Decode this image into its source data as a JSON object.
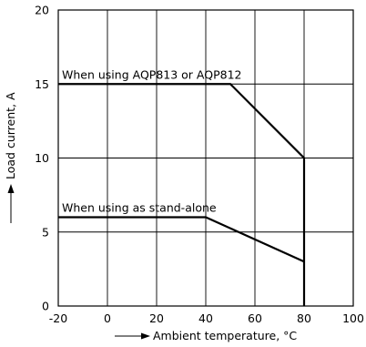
{
  "chart_data": {
    "type": "line",
    "xlabel": "Ambient temperature, °C",
    "ylabel": "Load current, A",
    "xlim": [
      -20,
      100
    ],
    "ylim": [
      0,
      20
    ],
    "x_ticks": [
      "-20",
      "0",
      "20",
      "40",
      "60",
      "80",
      "100"
    ],
    "y_ticks": [
      "0",
      "5",
      "10",
      "15",
      "20"
    ],
    "grid": true,
    "series": [
      {
        "name": "When using AQP813 or AQP812",
        "x": [
          -20,
          50,
          80,
          80
        ],
        "y": [
          15,
          15,
          10,
          0
        ]
      },
      {
        "name": "When using as stand-alone",
        "x": [
          -20,
          40,
          80
        ],
        "y": [
          6,
          6,
          3
        ]
      }
    ]
  }
}
